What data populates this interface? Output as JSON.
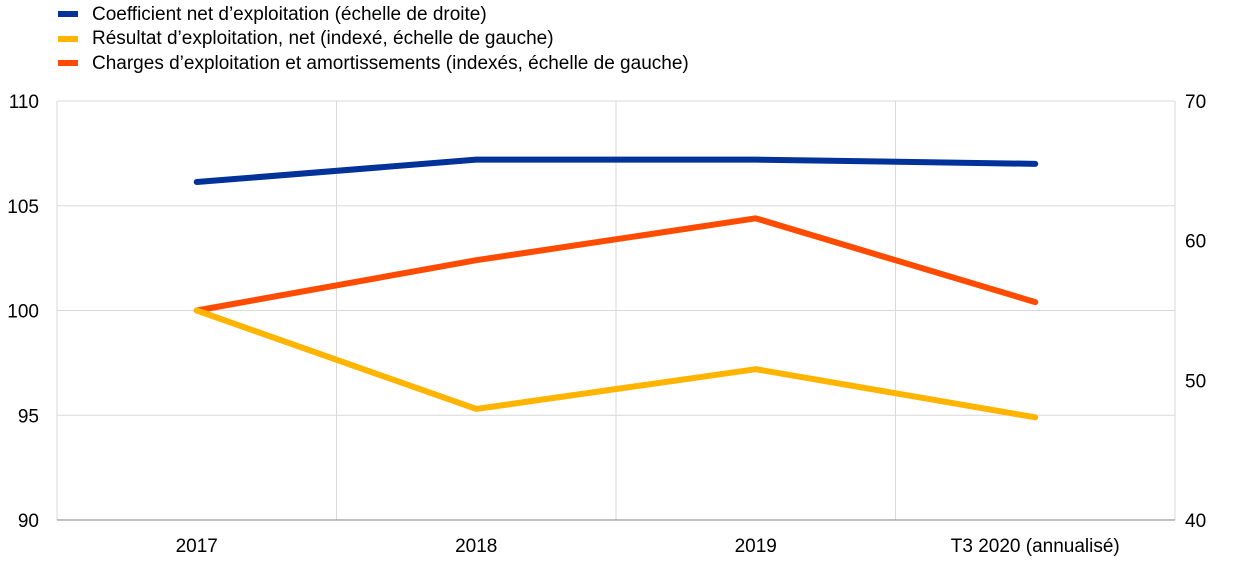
{
  "chart_data": {
    "type": "line",
    "title": "",
    "xlabel": "",
    "ylabel": "",
    "categories": [
      "2017",
      "2018",
      "2019",
      "T3 2020 (annualisé)"
    ],
    "y_left": {
      "min": 90,
      "max": 110,
      "step": 5,
      "ticks": [
        "90",
        "95",
        "100",
        "105",
        "110"
      ]
    },
    "y_right": {
      "min": 40,
      "max": 70,
      "step": 10,
      "ticks": [
        "40",
        "50",
        "60",
        "70"
      ]
    },
    "grid": true,
    "legend_position": "top-left",
    "series": [
      {
        "name": "Coefficient net d’exploitation (échelle de droite)",
        "axis": "right",
        "color": "#003299",
        "values": [
          64.2,
          65.8,
          65.8,
          65.5
        ]
      },
      {
        "name": "Résultat d’exploitation, net (indexé, échelle de gauche)",
        "axis": "left",
        "color": "#FFB400",
        "values": [
          100.0,
          95.3,
          97.2,
          94.9
        ]
      },
      {
        "name": "Charges d’exploitation et amortissements (indexés, échelle de gauche)",
        "axis": "left",
        "color": "#FF4B00",
        "values": [
          100.0,
          102.4,
          104.4,
          100.4
        ]
      }
    ]
  }
}
